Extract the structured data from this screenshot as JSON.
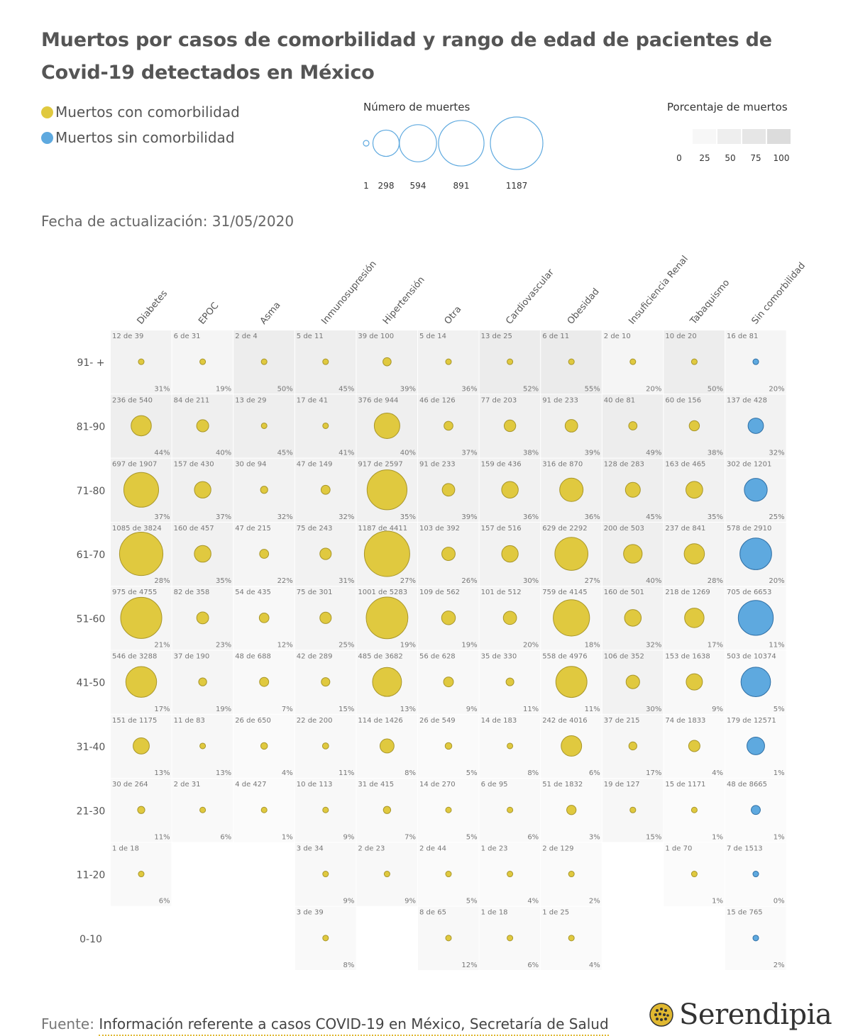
{
  "title": "Muertos por casos de comorbilidad y rango de edad de pacientes de Covid-19 detectados en México",
  "legend": {
    "with_comorbidity": "Muertos con comorbilidad",
    "without_comorbidity": "Muertos sin comorbilidad",
    "size_title": "Número de muertes",
    "size_values": [
      "1",
      "298",
      "594",
      "891",
      "1187"
    ],
    "pct_title": "Porcentaje de muertos",
    "pct_values": [
      "0",
      "25",
      "50",
      "75",
      "100"
    ]
  },
  "updated": "Fecha de actualización: 31/05/2020",
  "source": {
    "label": "Fuente:",
    "link_text": "Información referente a casos COVID-19 en México, Secretaría de Salud"
  },
  "brand": "Serendipia",
  "colors": {
    "with": "#e0c93f",
    "with_stroke": "#a8962a",
    "without": "#5ea9df",
    "without_stroke": "#2f6fa5",
    "size_legend": "#5ea9df"
  },
  "chart_data": {
    "type": "bubble-matrix",
    "columns": [
      "Diabetes",
      "EPOC",
      "Asma",
      "Inmunosupresión",
      "Hipertensión",
      "Otra",
      "Cardiovascular",
      "Obesidad",
      "Insuficiencia Renal",
      "Tabaquismo",
      "Sin comorbilidad"
    ],
    "rows": [
      "91- +",
      "81-90",
      "71-80",
      "61-70",
      "51-60",
      "41-50",
      "31-40",
      "21-30",
      "11-20",
      "0-10"
    ],
    "max_deaths": 1187,
    "cells": [
      [
        [
          12,
          39,
          31
        ],
        [
          6,
          31,
          19
        ],
        [
          2,
          4,
          50
        ],
        [
          5,
          11,
          45
        ],
        [
          39,
          100,
          39
        ],
        [
          5,
          14,
          36
        ],
        [
          13,
          25,
          52
        ],
        [
          6,
          11,
          55
        ],
        [
          2,
          10,
          20
        ],
        [
          10,
          20,
          50
        ],
        [
          16,
          81,
          20
        ]
      ],
      [
        [
          236,
          540,
          44
        ],
        [
          84,
          211,
          40
        ],
        [
          13,
          29,
          45
        ],
        [
          17,
          41,
          41
        ],
        [
          376,
          944,
          40
        ],
        [
          46,
          126,
          37
        ],
        [
          77,
          203,
          38
        ],
        [
          91,
          233,
          39
        ],
        [
          40,
          81,
          49
        ],
        [
          60,
          156,
          38
        ],
        [
          137,
          428,
          32
        ]
      ],
      [
        [
          697,
          1907,
          37
        ],
        [
          157,
          430,
          37
        ],
        [
          30,
          94,
          32
        ],
        [
          47,
          149,
          32
        ],
        [
          917,
          2597,
          35
        ],
        [
          91,
          233,
          39
        ],
        [
          159,
          436,
          36
        ],
        [
          316,
          870,
          36
        ],
        [
          128,
          283,
          45
        ],
        [
          163,
          465,
          35
        ],
        [
          302,
          1201,
          25
        ]
      ],
      [
        [
          1085,
          3824,
          28
        ],
        [
          160,
          457,
          35
        ],
        [
          47,
          215,
          22
        ],
        [
          75,
          243,
          31
        ],
        [
          1187,
          4411,
          27
        ],
        [
          103,
          392,
          26
        ],
        [
          157,
          516,
          30
        ],
        [
          629,
          2292,
          27
        ],
        [
          200,
          503,
          40
        ],
        [
          237,
          841,
          28
        ],
        [
          578,
          2910,
          20
        ]
      ],
      [
        [
          975,
          4755,
          21
        ],
        [
          82,
          358,
          23
        ],
        [
          54,
          435,
          12
        ],
        [
          75,
          301,
          25
        ],
        [
          1001,
          5283,
          19
        ],
        [
          109,
          562,
          19
        ],
        [
          101,
          512,
          20
        ],
        [
          759,
          4145,
          18
        ],
        [
          160,
          501,
          32
        ],
        [
          218,
          1269,
          17
        ],
        [
          705,
          6653,
          11
        ]
      ],
      [
        [
          546,
          3288,
          17
        ],
        [
          37,
          190,
          19
        ],
        [
          48,
          688,
          7
        ],
        [
          42,
          289,
          15
        ],
        [
          485,
          3682,
          13
        ],
        [
          56,
          628,
          9
        ],
        [
          35,
          330,
          11
        ],
        [
          558,
          4976,
          11
        ],
        [
          106,
          352,
          30
        ],
        [
          153,
          1638,
          9
        ],
        [
          503,
          10374,
          5
        ]
      ],
      [
        [
          151,
          1175,
          13
        ],
        [
          11,
          83,
          13
        ],
        [
          26,
          650,
          4
        ],
        [
          22,
          200,
          11
        ],
        [
          114,
          1426,
          8
        ],
        [
          26,
          549,
          5
        ],
        [
          14,
          183,
          8
        ],
        [
          242,
          4016,
          6
        ],
        [
          37,
          215,
          17
        ],
        [
          74,
          1833,
          4
        ],
        [
          179,
          12571,
          1
        ]
      ],
      [
        [
          30,
          264,
          11
        ],
        [
          2,
          31,
          6
        ],
        [
          4,
          427,
          1
        ],
        [
          10,
          113,
          9
        ],
        [
          31,
          415,
          7
        ],
        [
          14,
          270,
          5
        ],
        [
          6,
          95,
          6
        ],
        [
          51,
          1832,
          3
        ],
        [
          19,
          127,
          15
        ],
        [
          15,
          1171,
          1
        ],
        [
          48,
          8665,
          1
        ]
      ],
      [
        [
          1,
          18,
          6
        ],
        null,
        null,
        [
          3,
          34,
          9
        ],
        [
          2,
          23,
          9
        ],
        [
          2,
          44,
          5
        ],
        [
          1,
          23,
          4
        ],
        [
          2,
          129,
          2
        ],
        null,
        [
          1,
          70,
          1
        ],
        [
          7,
          1513,
          0
        ]
      ],
      [
        null,
        null,
        null,
        [
          3,
          39,
          8
        ],
        null,
        [
          8,
          65,
          12
        ],
        [
          1,
          18,
          6
        ],
        [
          1,
          25,
          4
        ],
        null,
        null,
        [
          15,
          765,
          2
        ]
      ]
    ]
  }
}
